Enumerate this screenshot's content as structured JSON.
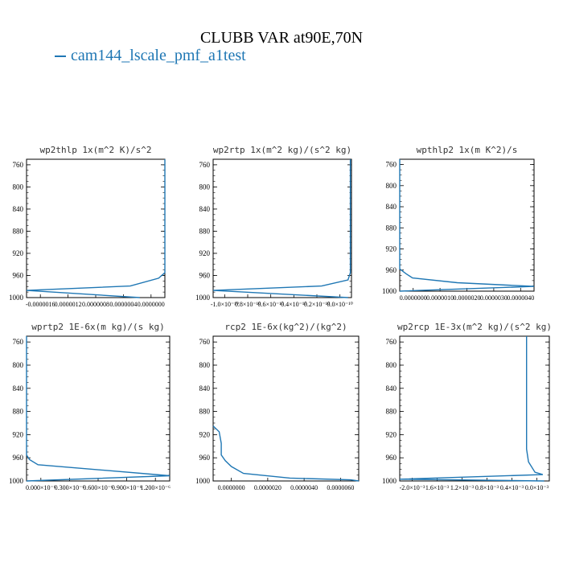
{
  "figure": {
    "title": "CLUBB VAR at90E,70N",
    "legend": "cam144_lscale_pmf_a1test",
    "line_color": "#1f77b4"
  },
  "chart_data": [
    {
      "type": "line",
      "title": "wp2thlp  1x(m^2 K)/s^2",
      "ylim": [
        1000,
        750
      ],
      "yticks": [
        760,
        800,
        840,
        880,
        920,
        960,
        1000
      ],
      "xlim": [
        -2e-06,
        2e-07
      ],
      "xtick_labels": [
        "-0.0000016",
        "0.0000012",
        "0.0000008",
        "0.0000004",
        "0.0000000"
      ],
      "x": [
        -2e-07,
        -2e-06,
        -3.5e-07,
        1e-07,
        2e-07,
        2e-07
      ],
      "y": [
        1000,
        987,
        979,
        965,
        955,
        750
      ]
    },
    {
      "type": "line",
      "title": "wp2rtp  1x(m^2 kg)/(s^2 kg)",
      "ylim": [
        1000,
        750
      ],
      "yticks": [
        760,
        800,
        840,
        880,
        920,
        960,
        1000
      ],
      "xlim": [
        -1.2e-10,
        1e-12
      ],
      "xtick_labels": [
        "-1.0×10⁻¹⁰",
        "0.8×10⁻¹⁰",
        "0.6×10⁻¹⁰",
        "0.4×10⁻¹⁰",
        "0.2×10⁻¹⁰",
        "0.0×10⁻¹⁰"
      ],
      "x": [
        -2e-12,
        -1.2e-10,
        -2.5e-11,
        -2e-12,
        0.0,
        0.0
      ],
      "y": [
        1000,
        987,
        979,
        968,
        955,
        750
      ]
    },
    {
      "type": "line",
      "title": "wpthlp2  1x(m K^2)/s",
      "ylim": [
        1000,
        750
      ],
      "yticks": [
        760,
        800,
        840,
        880,
        920,
        960,
        1000
      ],
      "xlim": [
        0.0,
        4.2e-05
      ],
      "xtick_labels": [
        "0.0000000",
        "0.0000010",
        "0.0000020",
        "0.0000030",
        "0.0000040"
      ],
      "x": [
        0.0,
        4.2e-05,
        1.8e-05,
        4e-06,
        2e-06,
        0.0,
        0.0
      ],
      "y": [
        1000,
        991,
        984,
        975,
        967,
        958,
        750
      ]
    },
    {
      "type": "line",
      "title": "wprtp2  1E-6x(m kg)/(s kg)",
      "ylim": [
        1000,
        750
      ],
      "yticks": [
        760,
        800,
        840,
        880,
        920,
        960,
        1000
      ],
      "xlim": [
        0.0,
        1.5e-06
      ],
      "xtick_labels": [
        "0.000×10⁻⁶",
        "0.300×10⁻⁶",
        "0.600×10⁻⁶",
        "0.900×10⁻⁶",
        "1.200×10⁻⁶"
      ],
      "x": [
        0.0,
        1.5e-06,
        1.2e-07,
        3e-08,
        0.0,
        0.0
      ],
      "y": [
        1000,
        991,
        972,
        963,
        955,
        750
      ]
    },
    {
      "type": "line",
      "title": "rcp2  1E-6x(kg^2)/(kg^2)",
      "ylim": [
        1000,
        750
      ],
      "yticks": [
        760,
        800,
        840,
        880,
        920,
        960,
        1000
      ],
      "xlim": [
        0.0,
        7.2e-06
      ],
      "xtick_labels": [
        "0.0000000",
        "0.0000020",
        "0.0000040",
        "0.0000060"
      ],
      "x": [
        7.2e-06,
        6.8e-06,
        3.8e-06,
        1.5e-06,
        9e-07,
        6e-07,
        4e-07,
        4e-07,
        3e-07,
        0.0
      ],
      "y": [
        1000,
        998,
        995,
        987,
        975,
        965,
        955,
        935,
        915,
        905
      ]
    },
    {
      "type": "line",
      "title": "wp2rcp  1E-3x(m^2 kg)/(s^2 kg)",
      "ylim": [
        1000,
        750
      ],
      "yticks": [
        760,
        800,
        840,
        880,
        920,
        960,
        1000
      ],
      "xlim": [
        -0.0022,
        0.0001
      ],
      "xtick_labels": [
        "-2.0×10⁻³",
        "1.6×10⁻³",
        "1.2×10⁻³",
        "0.8×10⁻³",
        "0.4×10⁻³",
        "0.0×10⁻³"
      ],
      "x": [
        2e-05,
        -0.0022,
        0.0,
        -0.00012,
        -0.00022,
        -0.00025,
        -0.00025
      ],
      "y": [
        1000,
        997,
        989,
        985,
        967,
        945,
        750
      ]
    }
  ]
}
